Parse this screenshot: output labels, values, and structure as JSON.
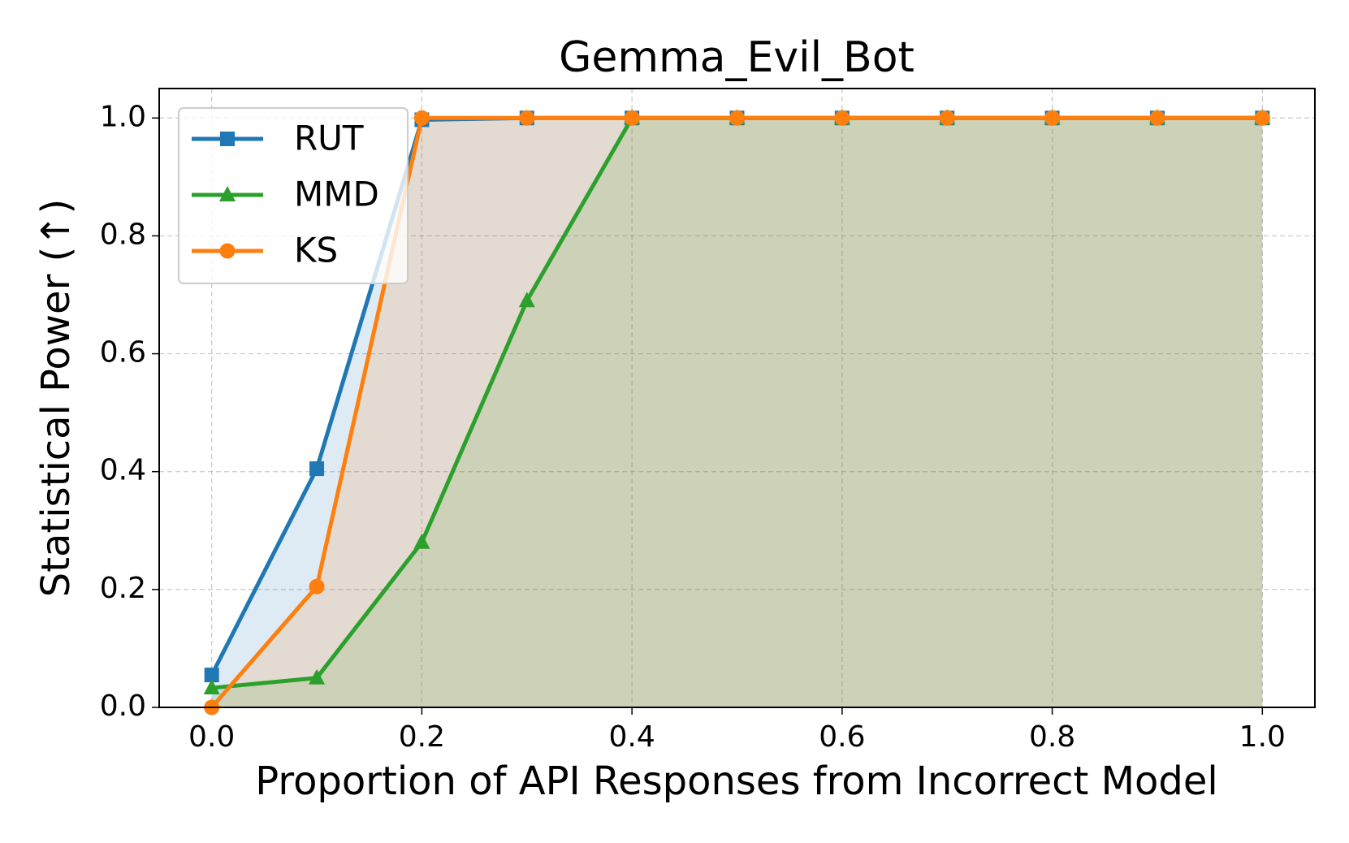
{
  "chart_data": {
    "type": "line",
    "title": "Gemma_Evil_Bot",
    "x_label": "Proportion of API Responses from Incorrect Model",
    "y_label": "Statistical Power (↑)",
    "x": [
      0.0,
      0.1,
      0.2,
      0.3,
      0.4,
      0.5,
      0.6,
      0.7,
      0.8,
      0.9,
      1.0
    ],
    "series": [
      {
        "name": "RUT",
        "color": "#1f77b4",
        "marker": "square",
        "values": [
          0.055,
          0.405,
          0.997,
          1.0,
          1.0,
          1.0,
          1.0,
          1.0,
          1.0,
          1.0,
          1.0
        ]
      },
      {
        "name": "MMD",
        "color": "#2ca02c",
        "marker": "triangle",
        "values": [
          0.033,
          0.05,
          0.28,
          0.69,
          1.0,
          1.0,
          1.0,
          1.0,
          1.0,
          1.0,
          1.0
        ]
      },
      {
        "name": "KS",
        "color": "#ff7f0e",
        "marker": "circle",
        "values": [
          0.0,
          0.205,
          1.0,
          1.0,
          1.0,
          1.0,
          1.0,
          1.0,
          1.0,
          1.0,
          1.0
        ]
      }
    ],
    "fill": true,
    "xlim": [
      -0.05,
      1.05
    ],
    "ylim": [
      0,
      1.05
    ],
    "xticks": [
      {
        "value": 0,
        "label": "0.0"
      },
      0.2,
      0.4,
      0.6,
      0.8,
      {
        "value": 1,
        "label": "1.0"
      }
    ],
    "yticks": [
      {
        "value": 0,
        "label": "0.0"
      },
      0.2,
      0.4,
      0.6,
      0.8,
      {
        "value": 1,
        "label": "1.0"
      }
    ],
    "grid": true,
    "legend": "upper left"
  }
}
